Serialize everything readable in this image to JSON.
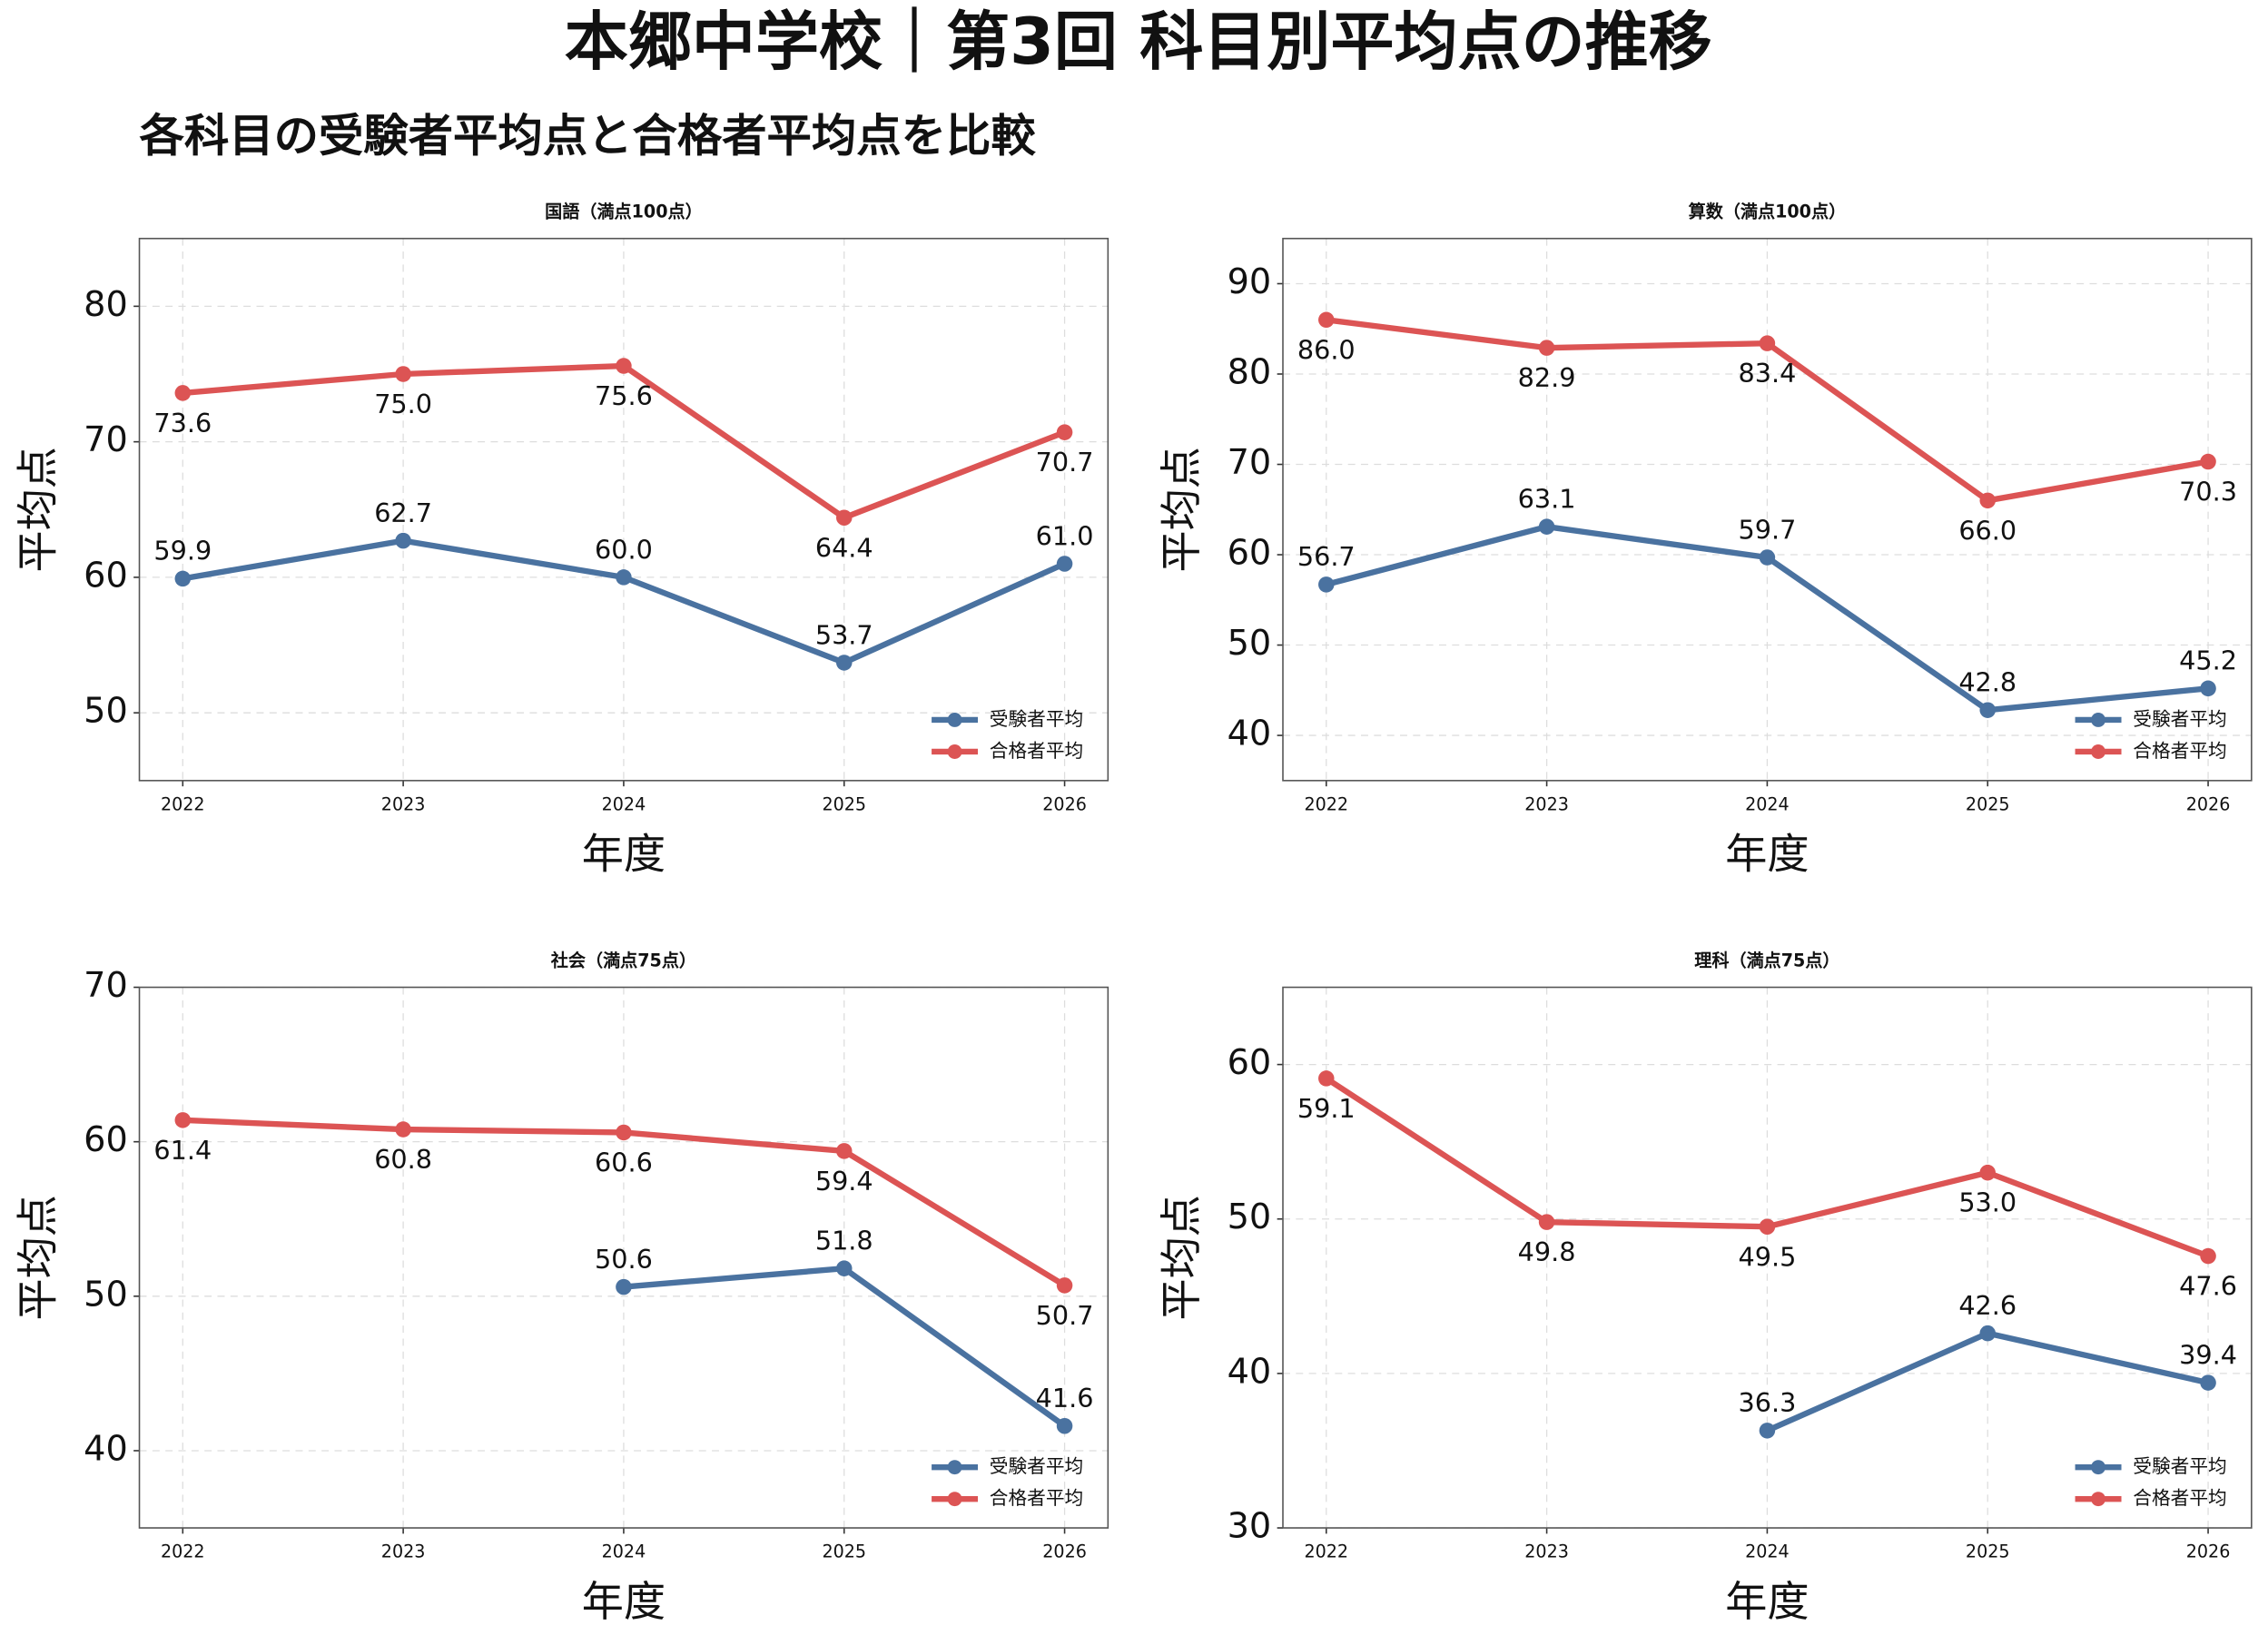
{
  "title": "本郷中学校｜第3回 科目別平均点の推移",
  "subtitle": "各科目の受験者平均点と合格者平均点を比較",
  "chart_data": [
    {
      "type": "line",
      "title": "国語（満点100点）",
      "xlabel": "年度",
      "ylabel": "平均点",
      "categories": [
        "2022",
        "2023",
        "2024",
        "2025",
        "2026"
      ],
      "ylim": [
        45,
        85
      ],
      "yticks": [
        50,
        60,
        70,
        80
      ],
      "grid": true,
      "legend": "lower right",
      "series": [
        {
          "name": "受験者平均",
          "color": "#4a72a0",
          "values": [
            59.9,
            62.7,
            60.0,
            53.7,
            61.0
          ],
          "value_labels": [
            "59.9",
            "62.7",
            "60.0",
            "53.7",
            "61.0"
          ]
        },
        {
          "name": "合格者平均",
          "color": "#dc5454",
          "values": [
            73.6,
            75.0,
            75.6,
            64.4,
            70.7
          ],
          "value_labels": [
            "73.6",
            "75.0",
            "75.6",
            "64.4",
            "70.7"
          ]
        }
      ]
    },
    {
      "type": "line",
      "title": "算数（満点100点）",
      "xlabel": "年度",
      "ylabel": "平均点",
      "categories": [
        "2022",
        "2023",
        "2024",
        "2025",
        "2026"
      ],
      "ylim": [
        35,
        95
      ],
      "yticks": [
        40,
        50,
        60,
        70,
        80,
        90
      ],
      "grid": true,
      "legend": "lower right",
      "series": [
        {
          "name": "受験者平均",
          "color": "#4a72a0",
          "values": [
            56.7,
            63.1,
            59.7,
            42.8,
            45.2
          ],
          "value_labels": [
            "56.7",
            "63.1",
            "59.7",
            "42.8",
            "45.2"
          ]
        },
        {
          "name": "合格者平均",
          "color": "#dc5454",
          "values": [
            86.0,
            82.9,
            83.4,
            66.0,
            70.3
          ],
          "value_labels": [
            "86.0",
            "82.9",
            "83.4",
            "66.0",
            "70.3"
          ]
        }
      ]
    },
    {
      "type": "line",
      "title": "社会（満点75点）",
      "xlabel": "年度",
      "ylabel": "平均点",
      "categories": [
        "2022",
        "2023",
        "2024",
        "2025",
        "2026"
      ],
      "ylim": [
        35,
        70
      ],
      "yticks": [
        40,
        50,
        60,
        70
      ],
      "grid": true,
      "legend": "lower right",
      "series": [
        {
          "name": "受験者平均",
          "color": "#4a72a0",
          "values": [
            null,
            null,
            50.6,
            51.8,
            41.6
          ],
          "value_labels": [
            null,
            null,
            "50.6",
            "51.8",
            "41.6"
          ]
        },
        {
          "name": "合格者平均",
          "color": "#dc5454",
          "values": [
            61.4,
            60.8,
            60.6,
            59.4,
            50.7
          ],
          "value_labels": [
            "61.4",
            "60.8",
            "60.6",
            "59.4",
            "50.7"
          ]
        }
      ]
    },
    {
      "type": "line",
      "title": "理科（満点75点）",
      "xlabel": "年度",
      "ylabel": "平均点",
      "categories": [
        "2022",
        "2023",
        "2024",
        "2025",
        "2026"
      ],
      "ylim": [
        30,
        65
      ],
      "yticks": [
        30,
        40,
        50,
        60
      ],
      "grid": true,
      "legend": "lower right",
      "series": [
        {
          "name": "受験者平均",
          "color": "#4a72a0",
          "values": [
            null,
            null,
            36.3,
            42.6,
            39.4
          ],
          "value_labels": [
            null,
            null,
            "36.3",
            "42.6",
            "39.4"
          ]
        },
        {
          "name": "合格者平均",
          "color": "#dc5454",
          "values": [
            59.1,
            49.8,
            49.5,
            53.0,
            47.6
          ],
          "value_labels": [
            "59.1",
            "49.8",
            "49.5",
            "53.0",
            "47.6"
          ]
        }
      ]
    }
  ]
}
